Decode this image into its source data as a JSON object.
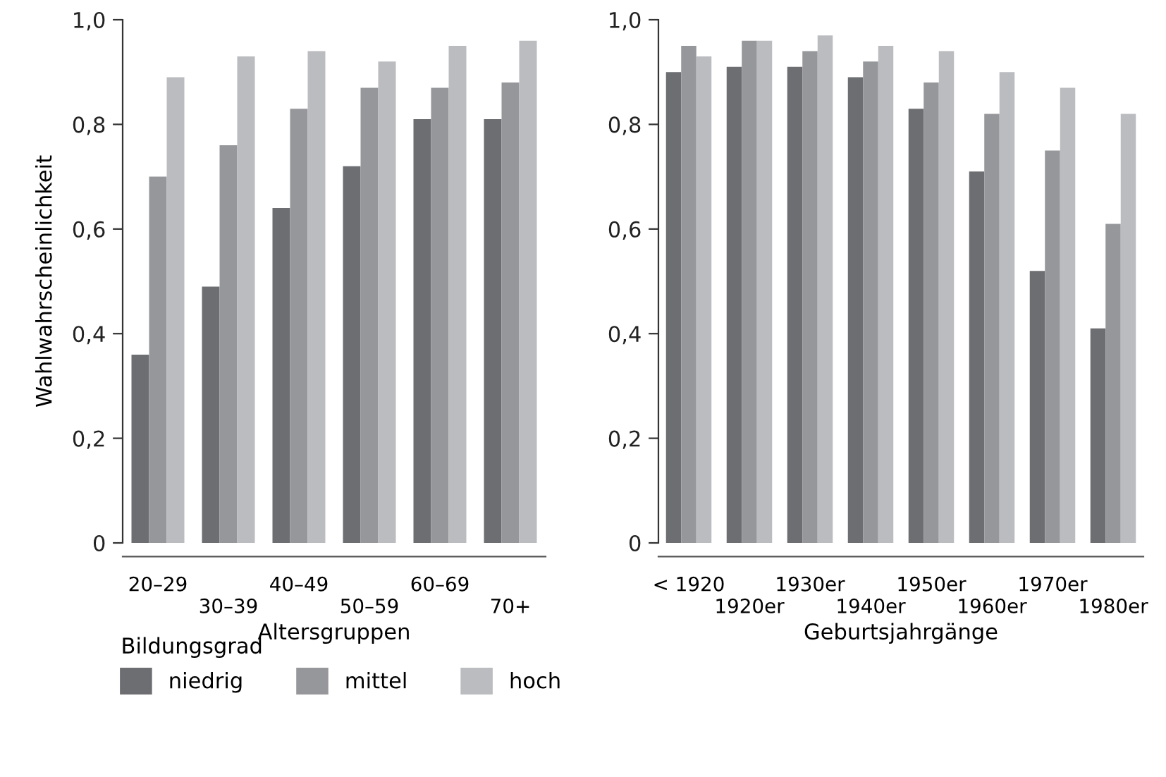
{
  "chart_data": [
    {
      "type": "bar",
      "xlabel": "Altersgruppen",
      "ylabel": "Wahlwahrscheinlichkeit",
      "legend_title": "Bildungsgrad",
      "legend": "bottom",
      "grid": false,
      "categories": [
        "20–29",
        "30–39",
        "40–49",
        "50–59",
        "60–69",
        "70+"
      ],
      "ylim": [
        0,
        1
      ],
      "yticks": [
        0,
        {
          "value": 0.2,
          "label": "0,2"
        },
        {
          "value": 0.4,
          "label": "0,4"
        },
        {
          "value": 0.6,
          "label": "0,6"
        },
        {
          "value": 0.8,
          "label": "0,8"
        },
        {
          "value": 1.0,
          "label": "1,0"
        }
      ],
      "series": [
        {
          "name": "niedrig",
          "color": "#6d6e72",
          "values": [
            0.36,
            0.49,
            0.64,
            0.72,
            0.81,
            0.81
          ]
        },
        {
          "name": "mittel",
          "color": "#96979b",
          "values": [
            0.7,
            0.76,
            0.83,
            0.87,
            0.87,
            0.88
          ]
        },
        {
          "name": "hoch",
          "color": "#bbbcc0",
          "values": [
            0.89,
            0.93,
            0.94,
            0.92,
            0.95,
            0.96
          ]
        }
      ]
    },
    {
      "type": "bar",
      "xlabel": "Geburtsjahrgänge",
      "grid": false,
      "categories": [
        "< 1920",
        "1920er",
        "1930er",
        "1940er",
        "1950er",
        "1960er",
        "1970er",
        "1980er"
      ],
      "ylim": [
        0,
        1
      ],
      "yticks": [
        0,
        {
          "value": 0.2,
          "label": "0,2"
        },
        {
          "value": 0.4,
          "label": "0,4"
        },
        {
          "value": 0.6,
          "label": "0,6"
        },
        {
          "value": 0.8,
          "label": "0,8"
        },
        {
          "value": 1.0,
          "label": "1,0"
        }
      ],
      "series": [
        {
          "color": "#6d6e72",
          "values": [
            0.9,
            0.91,
            0.91,
            0.89,
            0.83,
            0.71,
            0.52,
            0.41
          ]
        },
        {
          "color": "#96979b",
          "values": [
            0.95,
            0.96,
            0.94,
            0.92,
            0.88,
            0.82,
            0.75,
            0.61
          ]
        },
        {
          "color": "#bbbcc0",
          "values": [
            0.93,
            0.96,
            0.97,
            0.95,
            0.94,
            0.9,
            0.87,
            0.82
          ]
        }
      ]
    }
  ]
}
